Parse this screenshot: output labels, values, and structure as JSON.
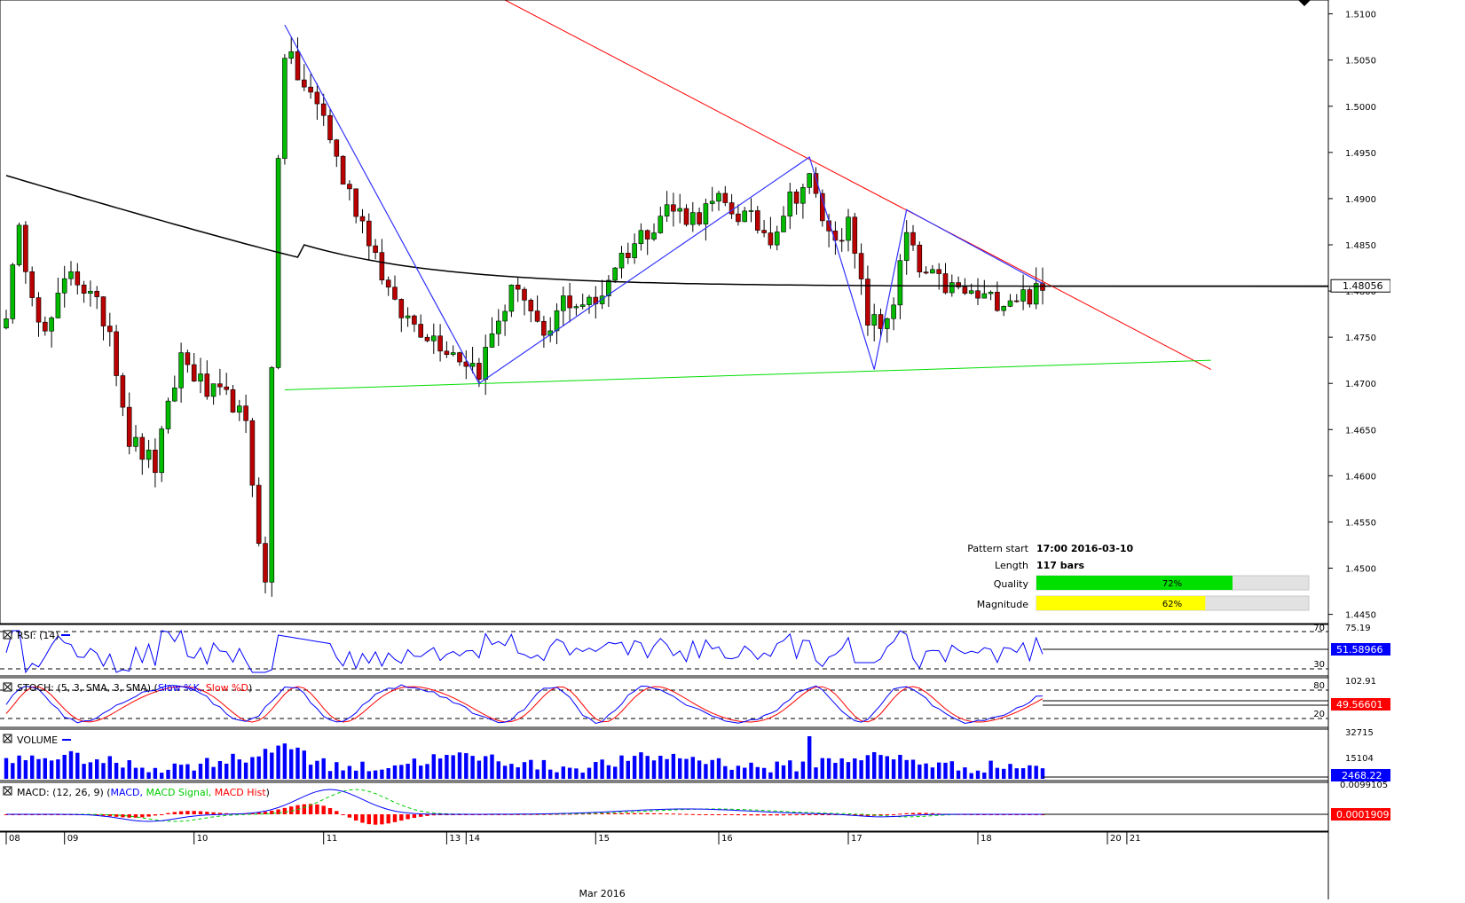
{
  "chart_data": {
    "type": "candlestick",
    "price_axis": {
      "ticks": [
        "1.5100",
        "1.5050",
        "1.5000",
        "1.4950",
        "1.4900",
        "1.4850",
        "1.4800",
        "1.4750",
        "1.4700",
        "1.4650",
        "1.4600",
        "1.4550",
        "1.4500",
        "1.4450"
      ],
      "range": [
        1.444,
        1.5115
      ],
      "current_price": "1.48056",
      "current_price_value": 1.48056
    },
    "time_axis": {
      "labels": [
        {
          "text": "08",
          "bar": 0
        },
        {
          "text": "09",
          "bar": 9
        },
        {
          "text": "10",
          "bar": 29
        },
        {
          "text": "11",
          "bar": 49
        },
        {
          "text": "13",
          "bar": 68
        },
        {
          "text": "14",
          "bar": 71
        },
        {
          "text": "15",
          "bar": 91
        },
        {
          "text": "16",
          "bar": 110
        },
        {
          "text": "17",
          "bar": 130
        },
        {
          "text": "18",
          "bar": 150
        },
        {
          "text": "20",
          "bar": 170
        },
        {
          "text": "21",
          "bar": 173
        }
      ],
      "month_label": "Mar 2016",
      "month_label_bar": 92
    },
    "price_extremes": {
      "high": 1.5088,
      "low": 1.4468
    },
    "moving_average_level": 1.4805,
    "trend_lines": {
      "resistance": {
        "color": "#ff0000",
        "from": {
          "bar": 77,
          "price": 1.5115
        },
        "to": {
          "bar": 186,
          "price": 1.4715
        }
      },
      "support": {
        "color": "#00dd00",
        "from": {
          "bar": 43,
          "price": 1.4693
        },
        "to": {
          "bar": 186,
          "price": 1.4725
        }
      },
      "zigzag_points": [
        {
          "bar": 43,
          "price": 1.5088
        },
        {
          "bar": 73,
          "price": 1.47
        },
        {
          "bar": 124,
          "price": 1.4945
        },
        {
          "bar": 134,
          "price": 1.4715
        },
        {
          "bar": 139,
          "price": 1.4888
        },
        {
          "bar": 160,
          "price": 1.4808
        }
      ]
    },
    "pattern_info": {
      "pattern_start_label": "Pattern start",
      "pattern_start_value": "17:00 2016-03-10",
      "length_label": "Length",
      "length_value": "117 bars",
      "quality_label": "Quality",
      "quality_value": "72%",
      "quality_fraction": 0.72,
      "magnitude_label": "Magnitude",
      "magnitude_value": "62%",
      "magnitude_fraction": 0.62
    },
    "indicators": {
      "rsi": {
        "title": "RSI: (14)",
        "axis_top": "75.19",
        "level_high": "70",
        "level_low": "30",
        "value": "51.58966"
      },
      "stoch": {
        "title_prefix": "STOCH: (5, 3, SMA, 3, SMA)",
        "k_label": "Slow %K,",
        "d_label": "Slow %D",
        "axis_top": "102.91",
        "level_high": "80",
        "level_low": "20",
        "value": "49.56601",
        "k_color": "#0000ff",
        "d_color": "#ff0000"
      },
      "volume": {
        "title": "VOLUME",
        "axis_top": "32715",
        "axis_mid": "15104",
        "value": "2468.22"
      },
      "macd": {
        "title_prefix": "MACD: (12, 26, 9)",
        "macd_label": "MACD,",
        "signal_label": "MACD Signal,",
        "hist_label": "MACD Hist",
        "axis_top": "0.0099105",
        "value": "0.0001909",
        "macd_color": "#0000ff",
        "signal_color": "#00cc00",
        "hist_color": "#ff0000"
      }
    },
    "colors": {
      "up_candle": "#00bb00",
      "down_candle": "#bb0000",
      "moving_average": "#000000",
      "rsi_line": "#0000ff",
      "volume_bars": "#0000ff",
      "background": "#ffffff"
    }
  }
}
